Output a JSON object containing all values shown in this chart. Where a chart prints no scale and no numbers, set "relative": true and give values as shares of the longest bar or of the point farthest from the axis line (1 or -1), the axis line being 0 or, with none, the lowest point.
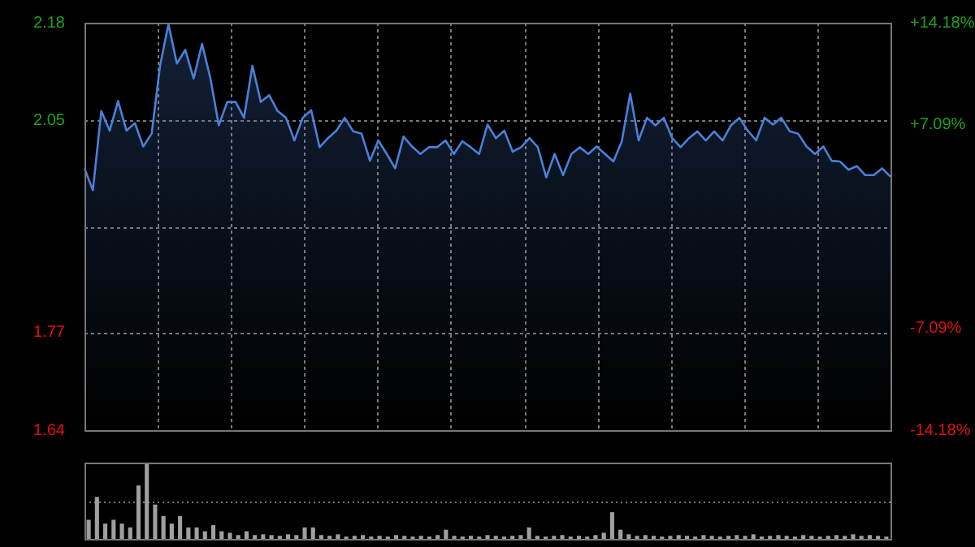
{
  "chart_data": [
    {
      "type": "area",
      "categories": [
        null,
        null,
        null,
        null,
        null,
        null,
        null,
        null,
        null,
        null,
        null,
        null,
        null,
        null,
        null,
        null,
        null,
        null,
        null,
        null,
        null,
        null,
        null,
        null,
        null,
        null,
        null,
        null,
        null,
        null,
        null,
        null,
        null,
        null,
        null,
        null,
        null,
        null,
        null,
        null,
        null,
        null,
        null,
        null,
        null,
        null,
        null,
        null,
        null,
        null,
        null,
        null,
        null,
        null,
        null,
        null,
        null,
        null,
        null,
        null,
        null,
        null,
        null,
        null,
        null,
        null,
        null,
        null,
        null,
        null,
        null,
        null,
        null,
        null,
        null,
        null,
        null,
        null,
        null,
        null,
        null,
        null,
        null,
        null,
        null,
        null,
        null,
        null,
        null,
        null,
        null,
        null,
        null,
        null,
        null,
        null,
        null
      ],
      "series": [
        {
          "color": "#4a80d8",
          "values": [
            1.987,
            1.958,
            2.063,
            2.037,
            2.076,
            2.037,
            2.047,
            2.016,
            2.033,
            2.123,
            2.178,
            2.126,
            2.144,
            2.106,
            2.152,
            2.106,
            2.044,
            2.075,
            2.075,
            2.054,
            2.123,
            2.075,
            2.084,
            2.063,
            2.054,
            2.024,
            2.054,
            2.064,
            2.015,
            2.027,
            2.037,
            2.054,
            2.036,
            2.033,
            1.997,
            2.024,
            2.006,
            1.987,
            2.029,
            2.016,
            2.006,
            2.015,
            2.015,
            2.024,
            2.006,
            2.023,
            2.015,
            2.006,
            2.045,
            2.027,
            2.037,
            2.009,
            2.015,
            2.027,
            2.015,
            1.975,
            2.006,
            1.978,
            2.006,
            2.015,
            2.006,
            2.016,
            2.006,
            1.996,
            2.023,
            2.086,
            2.024,
            2.054,
            2.044,
            2.054,
            2.027,
            2.015,
            2.027,
            2.036,
            2.024,
            2.036,
            2.024,
            2.044,
            2.054,
            2.037,
            2.024,
            2.054,
            2.045,
            2.054,
            2.036,
            2.033,
            2.016,
            2.006,
            2.016,
            1.997,
            1.996,
            1.985,
            1.99,
            1.978,
            1.978,
            1.987,
            1.976
          ]
        }
      ],
      "ylim": [
        1.64,
        2.18
      ],
      "yticks": [
        1.64,
        1.77,
        {
          "value": 1.91,
          "label": null
        },
        2.05,
        2.18
      ],
      "y2lim": [
        -14.18,
        14.18
      ],
      "y2ticks": [
        {
          "value": -14.18,
          "label": "-14.18%"
        },
        {
          "value": -7.09,
          "label": "-7.09%"
        },
        {
          "value": 7.09,
          "label": "+7.09%"
        },
        {
          "value": 14.18,
          "label": "+14.18%"
        }
      ],
      "grid": true
    },
    {
      "type": "bar",
      "relative": true,
      "ref_lines": [
        {
          "axis": "y",
          "value": 0.5,
          "line_style": "dotted",
          "color": "#777777"
        }
      ],
      "color": "#a0a0a0",
      "categories": [
        null,
        null,
        null,
        null,
        null,
        null,
        null,
        null,
        null,
        null,
        null,
        null,
        null,
        null,
        null,
        null,
        null,
        null,
        null,
        null,
        null,
        null,
        null,
        null,
        null,
        null,
        null,
        null,
        null,
        null,
        null,
        null,
        null,
        null,
        null,
        null,
        null,
        null,
        null,
        null,
        null,
        null,
        null,
        null,
        null,
        null,
        null,
        null,
        null,
        null,
        null,
        null,
        null,
        null,
        null,
        null,
        null,
        null,
        null,
        null,
        null,
        null,
        null,
        null,
        null,
        null,
        null,
        null,
        null,
        null,
        null,
        null,
        null,
        null,
        null,
        null,
        null,
        null,
        null,
        null,
        null,
        null,
        null,
        null,
        null,
        null,
        null,
        null,
        null,
        null,
        null,
        null,
        null,
        null,
        null,
        null,
        null
      ],
      "values": [
        0.25,
        0.55,
        0.2,
        0.25,
        0.2,
        0.15,
        0.7,
        1.0,
        0.45,
        0.3,
        0.2,
        0.3,
        0.15,
        0.15,
        0.1,
        0.18,
        0.1,
        0.08,
        0.05,
        0.1,
        0.05,
        0.06,
        0.05,
        0.04,
        0.06,
        0.05,
        0.15,
        0.15,
        0.05,
        0.04,
        0.06,
        0.03,
        0.04,
        0.05,
        0.03,
        0.04,
        0.03,
        0.05,
        0.04,
        0.03,
        0.04,
        0.03,
        0.05,
        0.12,
        0.04,
        0.03,
        0.04,
        0.03,
        0.05,
        0.04,
        0.03,
        0.04,
        0.05,
        0.15,
        0.04,
        0.03,
        0.04,
        0.05,
        0.03,
        0.04,
        0.03,
        0.05,
        0.08,
        0.35,
        0.12,
        0.06,
        0.04,
        0.05,
        0.04,
        0.03,
        0.04,
        0.05,
        0.04,
        0.03,
        0.05,
        0.04,
        0.03,
        0.04,
        0.05,
        0.04,
        0.06,
        0.03,
        0.04,
        0.05,
        0.04,
        0.03,
        0.05,
        0.04,
        0.03,
        0.04,
        0.05,
        0.04,
        0.06,
        0.04,
        0.05,
        0.04,
        0.03
      ]
    }
  ]
}
